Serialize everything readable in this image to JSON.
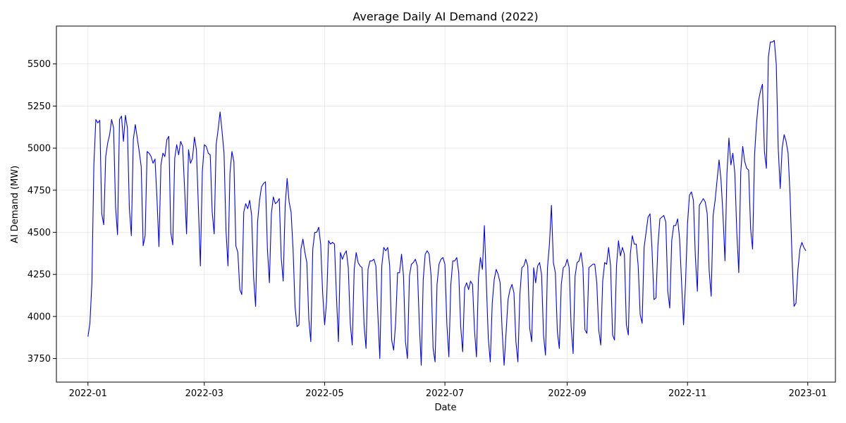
{
  "chart_data": {
    "type": "line",
    "title": "Average Daily AI Demand (2022)",
    "xlabel": "Date",
    "ylabel": "AI Demand (MW)",
    "xlim": [
      "2021-12-16",
      "2023-01-15"
    ],
    "ylim": [
      3610,
      5725
    ],
    "x_ticks": [
      "2022-01",
      "2022-03",
      "2022-05",
      "2022-07",
      "2022-09",
      "2022-11",
      "2023-01"
    ],
    "y_ticks": [
      3750,
      4000,
      4250,
      4500,
      4750,
      5000,
      5250,
      5500
    ],
    "grid": true,
    "series": [
      {
        "color": "#0000ff",
        "x_start": "2022-01-01",
        "x_step_days": 1,
        "values": [
          3880,
          3960,
          4200,
          4900,
          5170,
          5150,
          5165,
          4610,
          4545,
          4950,
          5030,
          5080,
          5170,
          5120,
          4650,
          4485,
          5170,
          5190,
          5040,
          5195,
          5120,
          4640,
          4480,
          5050,
          5140,
          5060,
          4980,
          4890,
          4420,
          4480,
          4980,
          4970,
          4950,
          4910,
          4935,
          4700,
          4415,
          4900,
          4970,
          4950,
          5050,
          5070,
          4500,
          4425,
          4940,
          5020,
          4960,
          5040,
          5010,
          4760,
          4490,
          4990,
          4910,
          4940,
          5065,
          4990,
          4650,
          4300,
          4860,
          5020,
          5010,
          4970,
          4960,
          4620,
          4490,
          5020,
          5110,
          5215,
          5100,
          4970,
          4510,
          4300,
          4850,
          4980,
          4920,
          4420,
          4380,
          4160,
          4130,
          4620,
          4670,
          4640,
          4690,
          4600,
          4230,
          4060,
          4560,
          4690,
          4770,
          4790,
          4800,
          4400,
          4200,
          4610,
          4710,
          4670,
          4680,
          4700,
          4350,
          4210,
          4660,
          4820,
          4680,
          4620,
          4400,
          4060,
          3940,
          3950,
          4400,
          4460,
          4380,
          4320,
          3980,
          3850,
          4400,
          4500,
          4500,
          4530,
          4430,
          4140,
          3950,
          4090,
          4450,
          4430,
          4440,
          4430,
          4120,
          3850,
          4380,
          4340,
          4370,
          4390,
          4290,
          3960,
          3830,
          4280,
          4380,
          4320,
          4300,
          4290,
          3950,
          3810,
          4280,
          4330,
          4330,
          4340,
          4300,
          4010,
          3750,
          4300,
          4410,
          4390,
          4410,
          4300,
          3860,
          3800,
          3960,
          4260,
          4260,
          4370,
          4240,
          3850,
          3750,
          4240,
          4310,
          4320,
          4340,
          4300,
          3960,
          3710,
          4220,
          4370,
          4390,
          4370,
          4240,
          3810,
          3730,
          4190,
          4310,
          4340,
          4350,
          4310,
          3950,
          3760,
          4190,
          4330,
          4330,
          4350,
          4260,
          3940,
          3790,
          4170,
          4200,
          4160,
          4210,
          4190,
          3920,
          3760,
          4230,
          4350,
          4280,
          4540,
          4200,
          3870,
          3730,
          4080,
          4220,
          4280,
          4250,
          4200,
          3920,
          3710,
          3900,
          4100,
          4160,
          4190,
          4140,
          3850,
          3730,
          4130,
          4290,
          4300,
          4340,
          4300,
          3930,
          3850,
          4290,
          4200,
          4300,
          4320,
          4250,
          3890,
          3770,
          4290,
          4430,
          4660,
          4320,
          4260,
          3910,
          3810,
          4190,
          4290,
          4300,
          4340,
          4290,
          3940,
          3780,
          4240,
          4320,
          4330,
          4380,
          4290,
          3920,
          3900,
          4290,
          4300,
          4310,
          4310,
          4200,
          3920,
          3830,
          4210,
          4320,
          4310,
          4410,
          4300,
          3890,
          3860,
          4300,
          4450,
          4360,
          4410,
          4370,
          3950,
          3890,
          4370,
          4480,
          4430,
          4430,
          4300,
          4010,
          3960,
          4410,
          4500,
          4590,
          4610,
          4400,
          4100,
          4110,
          4420,
          4580,
          4590,
          4600,
          4560,
          4150,
          4050,
          4450,
          4540,
          4540,
          4580,
          4460,
          4200,
          3950,
          4200,
          4550,
          4720,
          4740,
          4690,
          4350,
          4150,
          4660,
          4680,
          4700,
          4680,
          4610,
          4270,
          4120,
          4600,
          4690,
          4810,
          4930,
          4810,
          4600,
          4330,
          4850,
          5060,
          4900,
          4970,
          4850,
          4500,
          4260,
          4860,
          5010,
          4920,
          4880,
          4870,
          4520,
          4400,
          4960,
          5150,
          5280,
          5340,
          5380,
          4980,
          4880,
          5540,
          5630,
          5630,
          5640,
          5500,
          5000,
          4760,
          5000,
          5080,
          5040,
          4970,
          4720,
          4350,
          4060,
          4080,
          4280,
          4400,
          4440,
          4410,
          4390
        ]
      }
    ]
  }
}
